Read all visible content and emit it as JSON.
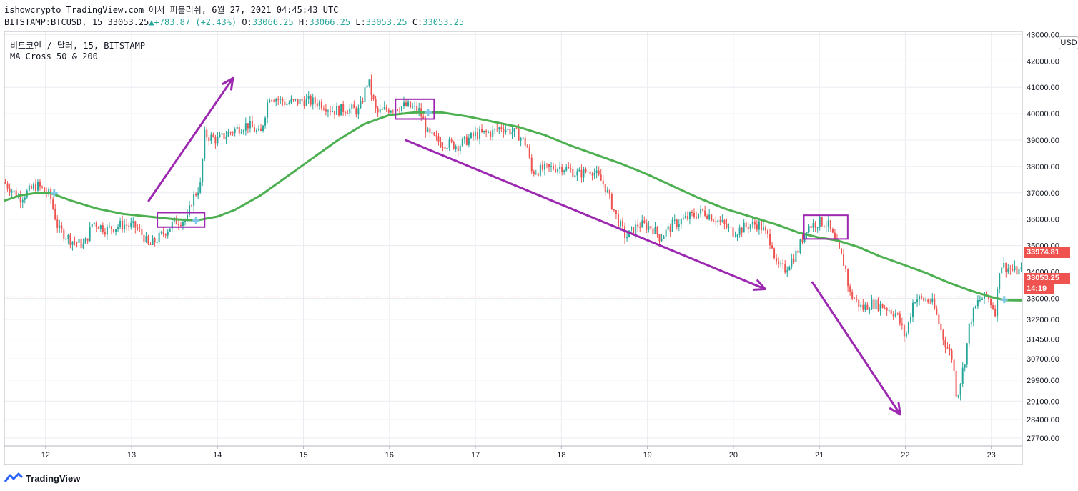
{
  "header": {
    "publisher_line": "ishowcrypto TradingView.com 에서 퍼블리쉬, 6월 27, 2021 04:45:43 UTC",
    "symbol": "BITSTAMP:BTCUSD, 15",
    "last": "33053.25",
    "change": "+783.87 (+2.43%)",
    "o_label": "O:",
    "o_value": "33066.25",
    "h_label": "H:",
    "h_value": "33066.25",
    "l_label": "L:",
    "l_value": "33053.25",
    "c_label": "C:",
    "c_value": "33053.25"
  },
  "legend": {
    "series": "비트코인 / 달러, 15, BITSTAMP",
    "indicator": "MA Cross 50 & 200"
  },
  "currency_button": "USD",
  "price_tags": {
    "last_close": "33974.81",
    "current": "33053.25",
    "countdown": "14:19"
  },
  "footer": {
    "brand": "TradingView"
  },
  "colors": {
    "candle_up": "#26a69a",
    "candle_down": "#ef5350",
    "ma": "#4caf50",
    "annotation": "#9c27b0",
    "cross_marker": "#7fc8e8",
    "grid": "#e9ecf1"
  },
  "chart_data": {
    "type": "candlestick",
    "title": "비트코인 / 달러, 15, BITSTAMP",
    "x_tick_labels": [
      "12",
      "13",
      "14",
      "15",
      "16",
      "17",
      "18",
      "19",
      "20",
      "21",
      "22",
      "23"
    ],
    "x_ticks": [
      12,
      13,
      14,
      15,
      16,
      17,
      18,
      19,
      20,
      21,
      22,
      23
    ],
    "xlim": [
      11.52,
      23.36
    ],
    "ylim": [
      27400,
      43120
    ],
    "y_ticks": [
      27700,
      28400,
      29100,
      29900,
      30700,
      31450,
      32200,
      33000,
      34000,
      35000,
      36000,
      37000,
      38000,
      39000,
      40000,
      41000,
      42000,
      43000
    ],
    "y_tick_labels": [
      "27700.00",
      "28400.00",
      "29100.00",
      "29900.00",
      "30700.00",
      "31450.00",
      "32200.00",
      "33000.00",
      "34000.00",
      "35000.00",
      "36000.00",
      "37000.00",
      "38000.00",
      "39000.00",
      "40000.00",
      "41000.00",
      "42000.00",
      "43000.00"
    ],
    "grid": true,
    "price_path": [
      [
        11.52,
        37400
      ],
      [
        11.7,
        36800
      ],
      [
        11.9,
        37300
      ],
      [
        12.05,
        36900
      ],
      [
        12.15,
        35600
      ],
      [
        12.3,
        35200
      ],
      [
        12.45,
        35000
      ],
      [
        12.55,
        35900
      ],
      [
        12.7,
        35600
      ],
      [
        12.9,
        35800
      ],
      [
        13.05,
        35700
      ],
      [
        13.15,
        35300
      ],
      [
        13.2,
        34950
      ],
      [
        13.35,
        35400
      ],
      [
        13.5,
        35900
      ],
      [
        13.65,
        36000
      ],
      [
        13.7,
        36700
      ],
      [
        13.8,
        37300
      ],
      [
        13.85,
        39200
      ],
      [
        14.0,
        39000
      ],
      [
        14.2,
        39400
      ],
      [
        14.35,
        39600
      ],
      [
        14.5,
        39200
      ],
      [
        14.6,
        40700
      ],
      [
        14.8,
        40400
      ],
      [
        15.0,
        40500
      ],
      [
        15.2,
        40400
      ],
      [
        15.35,
        40100
      ],
      [
        15.5,
        40200
      ],
      [
        15.65,
        40100
      ],
      [
        15.75,
        41300
      ],
      [
        15.85,
        40000
      ],
      [
        16.0,
        40200
      ],
      [
        16.2,
        40300
      ],
      [
        16.35,
        40100
      ],
      [
        16.45,
        39200
      ],
      [
        16.6,
        38900
      ],
      [
        16.8,
        38800
      ],
      [
        17.0,
        39200
      ],
      [
        17.2,
        39300
      ],
      [
        17.3,
        39500
      ],
      [
        17.5,
        39200
      ],
      [
        17.6,
        38800
      ],
      [
        17.65,
        37800
      ],
      [
        17.8,
        37900
      ],
      [
        18.0,
        38000
      ],
      [
        18.2,
        37700
      ],
      [
        18.35,
        37900
      ],
      [
        18.5,
        37300
      ],
      [
        18.65,
        36000
      ],
      [
        18.75,
        35300
      ],
      [
        18.9,
        35800
      ],
      [
        19.05,
        35700
      ],
      [
        19.15,
        35300
      ],
      [
        19.3,
        35800
      ],
      [
        19.5,
        36100
      ],
      [
        19.65,
        36300
      ],
      [
        19.8,
        36000
      ],
      [
        20.0,
        35500
      ],
      [
        20.2,
        35800
      ],
      [
        20.3,
        35800
      ],
      [
        20.45,
        35100
      ],
      [
        20.5,
        34200
      ],
      [
        20.6,
        34100
      ],
      [
        20.75,
        34800
      ],
      [
        20.85,
        35700
      ],
      [
        21.0,
        35900
      ],
      [
        21.1,
        35800
      ],
      [
        21.2,
        35000
      ],
      [
        21.3,
        34200
      ],
      [
        21.35,
        33200
      ],
      [
        21.5,
        32600
      ],
      [
        21.6,
        32800
      ],
      [
        21.75,
        32700
      ],
      [
        21.9,
        32400
      ],
      [
        22.0,
        31500
      ],
      [
        22.1,
        33000
      ],
      [
        22.3,
        32900
      ],
      [
        22.35,
        32500
      ],
      [
        22.45,
        31400
      ],
      [
        22.55,
        30700
      ],
      [
        22.6,
        29200
      ],
      [
        22.7,
        30800
      ],
      [
        22.75,
        32100
      ],
      [
        22.85,
        32900
      ],
      [
        22.95,
        33100
      ],
      [
        23.05,
        32500
      ],
      [
        23.1,
        34300
      ],
      [
        23.25,
        34050
      ],
      [
        23.36,
        34000
      ]
    ],
    "series": [
      {
        "name": "MA Cross 50 & 200",
        "points": [
          [
            11.52,
            36700
          ],
          [
            11.7,
            36900
          ],
          [
            11.9,
            37000
          ],
          [
            12.05,
            37000
          ],
          [
            12.3,
            36700
          ],
          [
            12.6,
            36400
          ],
          [
            12.9,
            36200
          ],
          [
            13.2,
            36100
          ],
          [
            13.5,
            36000
          ],
          [
            13.75,
            35950
          ],
          [
            14.0,
            36100
          ],
          [
            14.2,
            36350
          ],
          [
            14.5,
            36900
          ],
          [
            14.8,
            37600
          ],
          [
            15.1,
            38300
          ],
          [
            15.4,
            39000
          ],
          [
            15.7,
            39600
          ],
          [
            16.0,
            39950
          ],
          [
            16.3,
            40050
          ],
          [
            16.6,
            40050
          ],
          [
            16.9,
            39900
          ],
          [
            17.2,
            39700
          ],
          [
            17.5,
            39500
          ],
          [
            17.8,
            39200
          ],
          [
            18.1,
            38800
          ],
          [
            18.4,
            38450
          ],
          [
            18.7,
            38100
          ],
          [
            19.0,
            37700
          ],
          [
            19.3,
            37250
          ],
          [
            19.6,
            36800
          ],
          [
            19.9,
            36400
          ],
          [
            20.2,
            36100
          ],
          [
            20.5,
            35800
          ],
          [
            20.75,
            35500
          ],
          [
            21.0,
            35300
          ],
          [
            21.2,
            35200
          ],
          [
            21.45,
            34950
          ],
          [
            21.7,
            34600
          ],
          [
            22.0,
            34250
          ],
          [
            22.25,
            33950
          ],
          [
            22.5,
            33600
          ],
          [
            22.75,
            33300
          ],
          [
            23.0,
            33050
          ],
          [
            23.15,
            32930
          ],
          [
            23.36,
            32920
          ]
        ]
      }
    ],
    "cross_markers": [
      [
        12.1,
        37000
      ],
      [
        13.75,
        35950
      ],
      [
        16.45,
        40050
      ],
      [
        23.15,
        32950
      ]
    ],
    "annotations": {
      "arrows": [
        [
          [
            13.2,
            36700
          ],
          [
            14.18,
            41350
          ]
        ],
        [
          [
            16.19,
            39000
          ],
          [
            20.37,
            33350
          ]
        ],
        [
          [
            20.92,
            33600
          ],
          [
            21.94,
            28600
          ]
        ]
      ],
      "boxes": [
        [
          [
            13.3,
            35700
          ],
          [
            13.85,
            36250
          ]
        ],
        [
          [
            16.07,
            39800
          ],
          [
            16.52,
            40550
          ]
        ],
        [
          [
            20.82,
            35250
          ],
          [
            21.33,
            36150
          ]
        ]
      ]
    },
    "last_price_line": 33053.25
  }
}
